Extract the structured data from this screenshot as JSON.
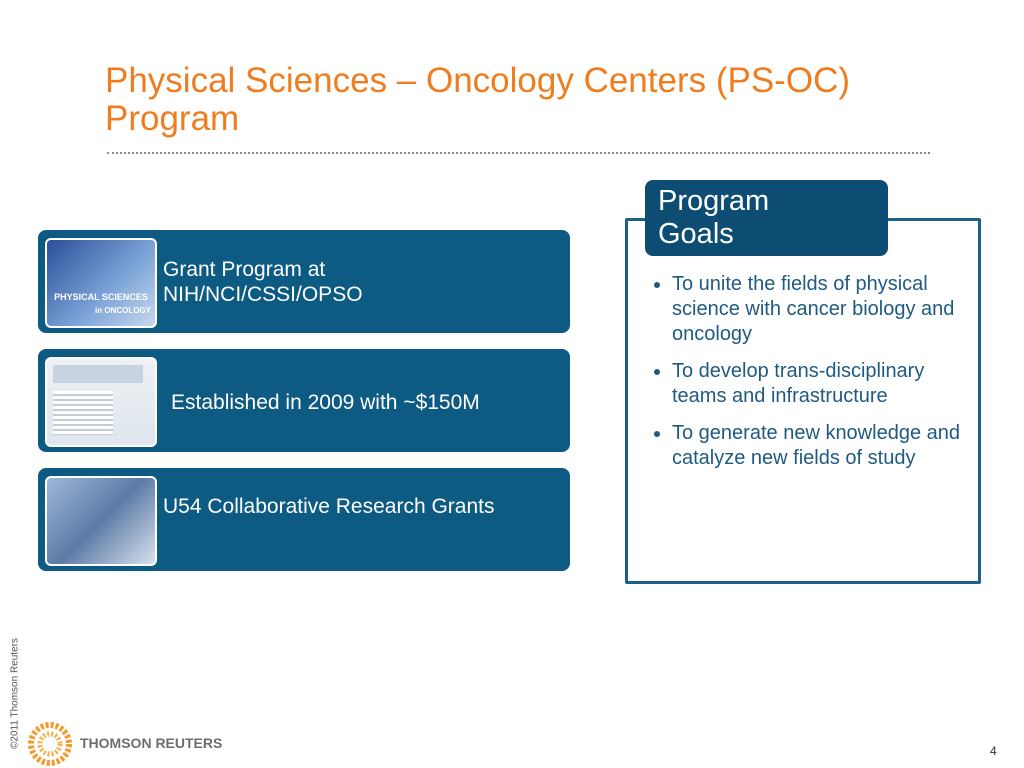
{
  "header": {
    "title": "Physical Sciences – Oncology Centers (PS-OC) Program"
  },
  "cards": [
    {
      "text": "Grant Program at NIH/NCI/CSSI/OPSO",
      "thumbnail": {
        "line1": "PHYSICAL SCIENCES",
        "line2": "in ONCOLOGY"
      }
    },
    {
      "text": "Established in 2009 with ~$150M"
    },
    {
      "text": "U54 Collaborative Research Grants"
    }
  ],
  "goals": {
    "title": "Program Goals",
    "items": [
      "To unite the fields of physical science with cancer biology and oncology",
      "To develop trans-disciplinary teams and infrastructure",
      "To generate new knowledge and catalyze new fields of study"
    ]
  },
  "footer": {
    "copyright": "©2011 Thomson Reuters",
    "brand": "THOMSON REUTERS",
    "page": "4"
  }
}
